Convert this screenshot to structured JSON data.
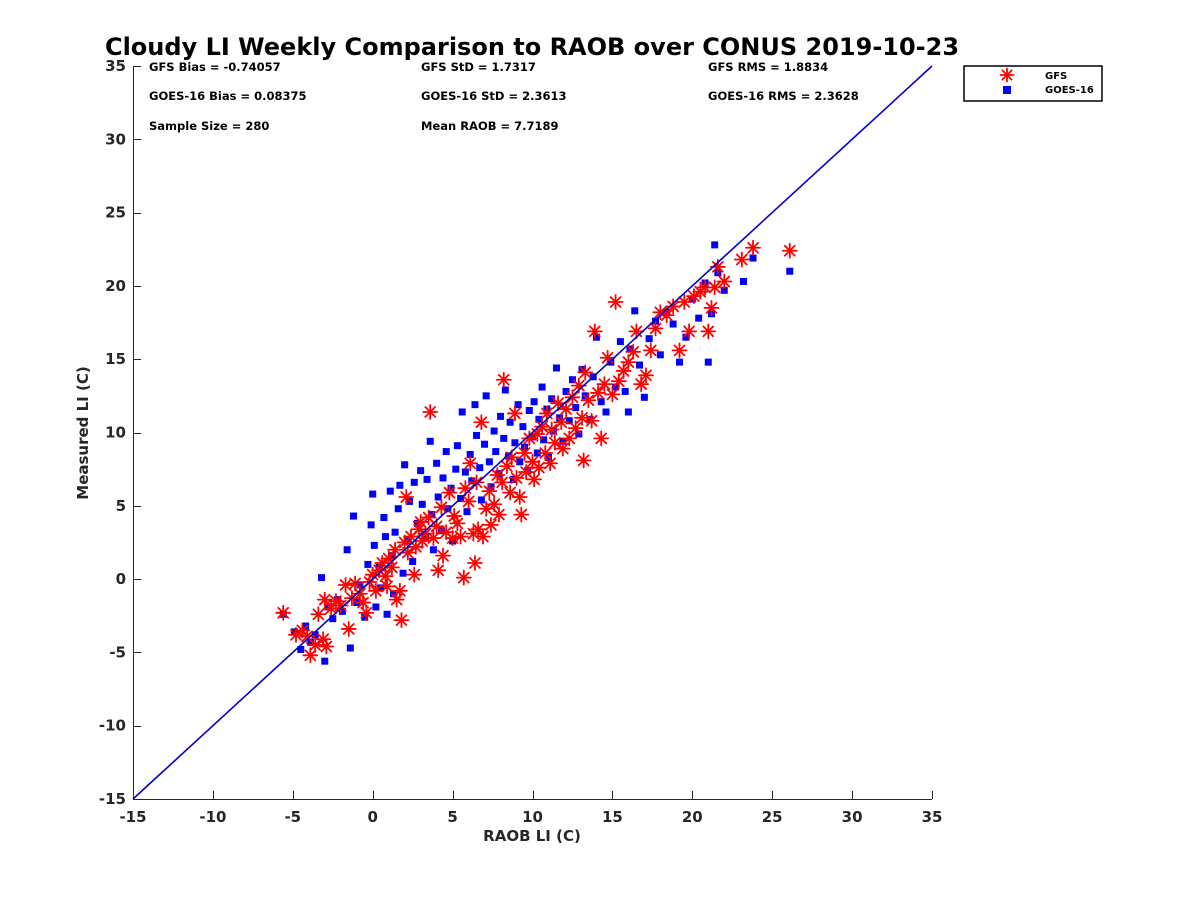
{
  "chart_data": {
    "type": "scatter",
    "title": "Cloudy LI Weekly Comparison to RAOB over CONUS 2019-10-23",
    "xlabel": "RAOB LI (C)",
    "ylabel": "Measured LI (C)",
    "xlim": [
      -15,
      35
    ],
    "ylim": [
      -15,
      35
    ],
    "xticks": [
      -15,
      -10,
      -5,
      0,
      5,
      10,
      15,
      20,
      25,
      30,
      35
    ],
    "yticks": [
      -15,
      -10,
      -5,
      0,
      5,
      10,
      15,
      20,
      25,
      30,
      35
    ],
    "grid": false,
    "legend_position": "top-right (outside plot area)",
    "stats": [
      "GFS Bias = -0.74057",
      "GFS StD = 1.7317",
      "GFS RMS = 1.8834",
      "GOES-16 Bias = 0.08375",
      "GOES-16 StD = 2.3613",
      "GOES-16 RMS = 2.3628",
      "Sample Size = 280",
      "Mean RAOB = 7.7189"
    ],
    "reference_line": {
      "color": "#0000cc",
      "from": [
        -15,
        -15
      ],
      "to": [
        35,
        35
      ]
    },
    "series": [
      {
        "name": "GFS",
        "marker": "asterisk",
        "color": "#ff0000",
        "points": [
          [
            -5.6,
            -2.3
          ],
          [
            -4.8,
            -3.8
          ],
          [
            -4.4,
            -3.5
          ],
          [
            -4.1,
            -3.9
          ],
          [
            -3.9,
            -5.2
          ],
          [
            -3.6,
            -4.5
          ],
          [
            -3.4,
            -2.4
          ],
          [
            -3.1,
            -4.1
          ],
          [
            -2.9,
            -4.6
          ],
          [
            -3.0,
            -1.4
          ],
          [
            -2.6,
            -2.0
          ],
          [
            -2.3,
            -1.5
          ],
          [
            -2.0,
            -1.8
          ],
          [
            -1.7,
            -0.4
          ],
          [
            -1.5,
            -3.4
          ],
          [
            -1.3,
            -1.3
          ],
          [
            -1.1,
            -0.3
          ],
          [
            -0.8,
            -1.0
          ],
          [
            -0.6,
            -1.6
          ],
          [
            -0.4,
            -2.3
          ],
          [
            -0.2,
            -0.2
          ],
          [
            0.0,
            0.3
          ],
          [
            0.2,
            -0.8
          ],
          [
            0.4,
            0.6
          ],
          [
            0.6,
            1.1
          ],
          [
            0.8,
            0.2
          ],
          [
            0.9,
            -0.5
          ],
          [
            1.0,
            1.4
          ],
          [
            1.2,
            0.8
          ],
          [
            1.4,
            2.0
          ],
          [
            1.5,
            -1.4
          ],
          [
            1.7,
            -0.8
          ],
          [
            1.8,
            -2.8
          ],
          [
            2.0,
            2.5
          ],
          [
            2.1,
            5.6
          ],
          [
            2.2,
            1.8
          ],
          [
            2.4,
            2.9
          ],
          [
            2.6,
            0.3
          ],
          [
            2.7,
            2.2
          ],
          [
            2.9,
            3.4
          ],
          [
            3.0,
            3.9
          ],
          [
            3.1,
            2.6
          ],
          [
            3.3,
            3.1
          ],
          [
            3.5,
            4.2
          ],
          [
            3.6,
            11.4
          ],
          [
            3.8,
            2.8
          ],
          [
            4.0,
            3.6
          ],
          [
            4.1,
            0.6
          ],
          [
            4.3,
            4.9
          ],
          [
            4.4,
            1.6
          ],
          [
            4.6,
            3.2
          ],
          [
            4.8,
            5.9
          ],
          [
            5.0,
            2.8
          ],
          [
            5.1,
            4.3
          ],
          [
            5.3,
            3.8
          ],
          [
            5.5,
            2.9
          ],
          [
            5.7,
            0.1
          ],
          [
            5.8,
            6.2
          ],
          [
            6.0,
            5.3
          ],
          [
            6.1,
            7.9
          ],
          [
            6.3,
            3.1
          ],
          [
            6.4,
            1.1
          ],
          [
            6.5,
            6.6
          ],
          [
            6.6,
            3.4
          ],
          [
            6.8,
            10.7
          ],
          [
            6.9,
            2.9
          ],
          [
            7.1,
            4.8
          ],
          [
            7.3,
            6.0
          ],
          [
            7.4,
            3.7
          ],
          [
            7.6,
            5.1
          ],
          [
            7.8,
            7.1
          ],
          [
            7.9,
            4.4
          ],
          [
            8.1,
            6.6
          ],
          [
            8.2,
            13.6
          ],
          [
            8.4,
            7.7
          ],
          [
            8.6,
            5.9
          ],
          [
            8.7,
            8.3
          ],
          [
            8.9,
            11.3
          ],
          [
            9.0,
            6.9
          ],
          [
            9.2,
            5.6
          ],
          [
            9.3,
            4.4
          ],
          [
            9.5,
            8.6
          ],
          [
            9.6,
            7.3
          ],
          [
            9.8,
            9.6
          ],
          [
            10.0,
            8.0
          ],
          [
            10.1,
            6.8
          ],
          [
            10.3,
            9.9
          ],
          [
            10.4,
            7.6
          ],
          [
            10.6,
            10.4
          ],
          [
            10.8,
            8.6
          ],
          [
            10.9,
            11.3
          ],
          [
            11.1,
            7.9
          ],
          [
            11.2,
            10.2
          ],
          [
            11.4,
            9.3
          ],
          [
            11.6,
            12.0
          ],
          [
            11.8,
            10.7
          ],
          [
            11.9,
            8.9
          ],
          [
            12.1,
            11.6
          ],
          [
            12.3,
            9.6
          ],
          [
            12.5,
            12.4
          ],
          [
            12.7,
            10.3
          ],
          [
            12.9,
            13.2
          ],
          [
            13.1,
            11.0
          ],
          [
            13.3,
            14.1
          ],
          [
            13.5,
            12.2
          ],
          [
            13.7,
            10.8
          ],
          [
            13.9,
            16.9
          ],
          [
            14.1,
            12.7
          ],
          [
            14.3,
            9.6
          ],
          [
            14.5,
            13.3
          ],
          [
            14.7,
            15.1
          ],
          [
            15.0,
            12.6
          ],
          [
            15.2,
            18.9
          ],
          [
            15.4,
            13.5
          ],
          [
            15.7,
            14.2
          ],
          [
            16.0,
            14.8
          ],
          [
            16.3,
            15.5
          ],
          [
            16.5,
            16.9
          ],
          [
            16.8,
            13.3
          ],
          [
            17.1,
            13.9
          ],
          [
            17.4,
            15.6
          ],
          [
            17.7,
            17.1
          ],
          [
            18.0,
            18.2
          ],
          [
            18.4,
            18.0
          ],
          [
            18.8,
            18.6
          ],
          [
            19.2,
            15.6
          ],
          [
            19.5,
            18.9
          ],
          [
            19.8,
            16.9
          ],
          [
            20.1,
            19.3
          ],
          [
            20.5,
            19.6
          ],
          [
            20.8,
            19.9
          ],
          [
            21.0,
            16.9
          ],
          [
            21.2,
            18.5
          ],
          [
            21.4,
            19.9
          ],
          [
            21.6,
            21.3
          ],
          [
            22.0,
            20.3
          ],
          [
            23.1,
            21.8
          ],
          [
            23.8,
            22.6
          ],
          [
            26.1,
            22.4
          ],
          [
            13.2,
            8.1
          ]
        ]
      },
      {
        "name": "GOES-16",
        "marker": "square",
        "color": "#0000ff",
        "points": [
          [
            -5.6,
            -2.4
          ],
          [
            -4.9,
            -3.6
          ],
          [
            -4.5,
            -4.8
          ],
          [
            -4.2,
            -3.2
          ],
          [
            -3.9,
            -4.3
          ],
          [
            -3.6,
            -3.8
          ],
          [
            -3.2,
            0.1
          ],
          [
            -3.0,
            -5.6
          ],
          [
            -2.8,
            -1.9
          ],
          [
            -2.5,
            -2.7
          ],
          [
            -2.2,
            -1.4
          ],
          [
            -1.9,
            -2.2
          ],
          [
            -1.6,
            2.0
          ],
          [
            -1.4,
            -4.7
          ],
          [
            -1.2,
            4.3
          ],
          [
            -1.0,
            -1.6
          ],
          [
            -0.8,
            -0.4
          ],
          [
            -0.5,
            -2.6
          ],
          [
            -0.3,
            1.0
          ],
          [
            -0.1,
            3.7
          ],
          [
            0.0,
            5.8
          ],
          [
            0.1,
            2.3
          ],
          [
            0.2,
            -1.9
          ],
          [
            0.4,
            0.8
          ],
          [
            0.5,
            -0.6
          ],
          [
            0.7,
            4.2
          ],
          [
            0.8,
            2.9
          ],
          [
            0.9,
            -2.4
          ],
          [
            1.1,
            6.0
          ],
          [
            1.2,
            1.6
          ],
          [
            1.3,
            -1.0
          ],
          [
            1.4,
            3.2
          ],
          [
            1.6,
            4.8
          ],
          [
            1.7,
            6.4
          ],
          [
            1.9,
            0.4
          ],
          [
            2.0,
            7.8
          ],
          [
            2.2,
            2.6
          ],
          [
            2.3,
            5.3
          ],
          [
            2.5,
            1.2
          ],
          [
            2.6,
            6.6
          ],
          [
            2.8,
            3.8
          ],
          [
            3.0,
            7.4
          ],
          [
            3.1,
            5.1
          ],
          [
            3.3,
            2.9
          ],
          [
            3.4,
            6.8
          ],
          [
            3.6,
            9.4
          ],
          [
            3.7,
            4.4
          ],
          [
            3.8,
            2.0
          ],
          [
            4.0,
            7.9
          ],
          [
            4.1,
            5.6
          ],
          [
            4.3,
            3.3
          ],
          [
            4.4,
            6.9
          ],
          [
            4.6,
            8.7
          ],
          [
            4.7,
            4.8
          ],
          [
            4.9,
            6.2
          ],
          [
            5.0,
            2.6
          ],
          [
            5.2,
            7.5
          ],
          [
            5.3,
            9.1
          ],
          [
            5.5,
            5.5
          ],
          [
            5.6,
            11.4
          ],
          [
            5.8,
            7.3
          ],
          [
            5.9,
            4.6
          ],
          [
            6.1,
            8.5
          ],
          [
            6.2,
            6.7
          ],
          [
            6.4,
            11.9
          ],
          [
            6.5,
            9.8
          ],
          [
            6.7,
            7.6
          ],
          [
            6.8,
            5.4
          ],
          [
            7.0,
            9.2
          ],
          [
            7.1,
            12.5
          ],
          [
            7.3,
            8.0
          ],
          [
            7.4,
            6.3
          ],
          [
            7.6,
            10.1
          ],
          [
            7.7,
            8.7
          ],
          [
            7.9,
            7.2
          ],
          [
            8.0,
            11.1
          ],
          [
            8.2,
            9.6
          ],
          [
            8.3,
            12.9
          ],
          [
            8.5,
            8.4
          ],
          [
            8.6,
            10.7
          ],
          [
            8.8,
            6.8
          ],
          [
            8.9,
            9.3
          ],
          [
            9.1,
            11.9
          ],
          [
            9.2,
            8.0
          ],
          [
            9.4,
            10.4
          ],
          [
            9.5,
            9.0
          ],
          [
            9.7,
            7.4
          ],
          [
            9.8,
            11.5
          ],
          [
            10.0,
            9.7
          ],
          [
            10.1,
            12.1
          ],
          [
            10.3,
            8.6
          ],
          [
            10.4,
            10.9
          ],
          [
            10.6,
            13.1
          ],
          [
            10.7,
            9.5
          ],
          [
            10.9,
            11.6
          ],
          [
            11.0,
            8.3
          ],
          [
            11.2,
            12.3
          ],
          [
            11.3,
            10.1
          ],
          [
            11.5,
            14.4
          ],
          [
            11.7,
            11.0
          ],
          [
            11.9,
            9.4
          ],
          [
            12.1,
            12.8
          ],
          [
            12.3,
            10.8
          ],
          [
            12.5,
            13.6
          ],
          [
            12.7,
            11.7
          ],
          [
            12.9,
            9.9
          ],
          [
            13.1,
            14.3
          ],
          [
            13.3,
            12.5
          ],
          [
            13.6,
            10.9
          ],
          [
            13.8,
            13.8
          ],
          [
            14.0,
            16.5
          ],
          [
            14.3,
            12.1
          ],
          [
            14.6,
            11.4
          ],
          [
            14.9,
            14.8
          ],
          [
            15.2,
            13.1
          ],
          [
            15.5,
            16.2
          ],
          [
            15.8,
            12.8
          ],
          [
            16.1,
            15.7
          ],
          [
            16.4,
            18.3
          ],
          [
            16.7,
            14.6
          ],
          [
            17.0,
            12.4
          ],
          [
            17.3,
            16.4
          ],
          [
            17.7,
            17.6
          ],
          [
            18.0,
            15.3
          ],
          [
            18.4,
            18.2
          ],
          [
            18.8,
            17.4
          ],
          [
            19.2,
            14.8
          ],
          [
            19.6,
            16.5
          ],
          [
            20.0,
            19.1
          ],
          [
            20.4,
            17.8
          ],
          [
            20.8,
            20.2
          ],
          [
            21.0,
            14.8
          ],
          [
            21.2,
            18.1
          ],
          [
            21.4,
            22.8
          ],
          [
            21.6,
            20.9
          ],
          [
            22.0,
            19.7
          ],
          [
            23.2,
            20.3
          ],
          [
            23.8,
            21.9
          ],
          [
            26.1,
            21.0
          ],
          [
            16.0,
            11.4
          ]
        ]
      }
    ]
  }
}
